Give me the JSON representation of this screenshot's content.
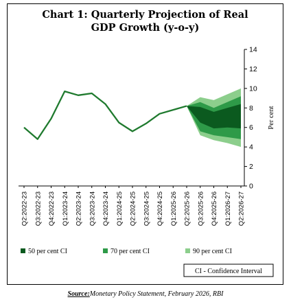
{
  "chart_data": {
    "type": "line",
    "title_line1": "Chart 1: Quarterly Projection of Real",
    "title_line2": "GDP Growth (y-o-y)",
    "ylabel": "Per cent",
    "ylim": [
      0,
      14
    ],
    "yticks": [
      0,
      2,
      4,
      6,
      8,
      10,
      12,
      14
    ],
    "y_axis_side": "right",
    "grid": false,
    "categories": [
      "Q2:2022-23",
      "Q3:2022-23",
      "Q4:2022-23",
      "Q1:2023-24",
      "Q2:2023-24",
      "Q3:2023-24",
      "Q4:2023-24",
      "Q1:2024-25",
      "Q2:2024-25",
      "Q3:2024-25",
      "Q4:2024-25",
      "Q1:2025-26",
      "Q2:2025-26",
      "Q3:2025-26",
      "Q4:2025-26",
      "Q1:2026-27",
      "Q2:2026-27"
    ],
    "series": [
      {
        "values": [
          6.0,
          4.8,
          6.9,
          9.7,
          9.3,
          9.5,
          8.4,
          6.5,
          5.6,
          6.4,
          7.4,
          7.8,
          8.2,
          null,
          null,
          null,
          null
        ],
        "color": "#1f7a2e"
      }
    ],
    "fan": {
      "start_index": 12,
      "center": [
        8.2,
        7.4,
        7.0,
        7.1,
        7.2
      ],
      "ci90": {
        "low": [
          8.2,
          5.2,
          4.7,
          4.4,
          4.0
        ],
        "high": [
          8.2,
          9.1,
          8.8,
          9.4,
          10.0
        ],
        "color": "#8cce8c"
      },
      "ci70": {
        "low": [
          8.2,
          5.6,
          5.2,
          5.0,
          4.8
        ],
        "high": [
          8.2,
          8.6,
          8.0,
          8.6,
          9.2
        ],
        "color": "#2e9a48"
      },
      "ci50": {
        "low": [
          8.2,
          6.5,
          5.9,
          6.0,
          5.9
        ],
        "high": [
          8.2,
          8.1,
          7.6,
          8.0,
          8.4
        ],
        "color": "#0b5a1f"
      }
    }
  },
  "legend": {
    "items": [
      {
        "label": "50 per cent CI",
        "color": "#0b5a1f"
      },
      {
        "label": "70 per cent CI",
        "color": "#2e9a48"
      },
      {
        "label": "90 per cent CI",
        "color": "#8cce8c"
      }
    ],
    "note": "CI - Confidence Interval"
  },
  "source": {
    "label": "Source:",
    "text": "Monetary Policy Statement, February 2026, RBI"
  }
}
